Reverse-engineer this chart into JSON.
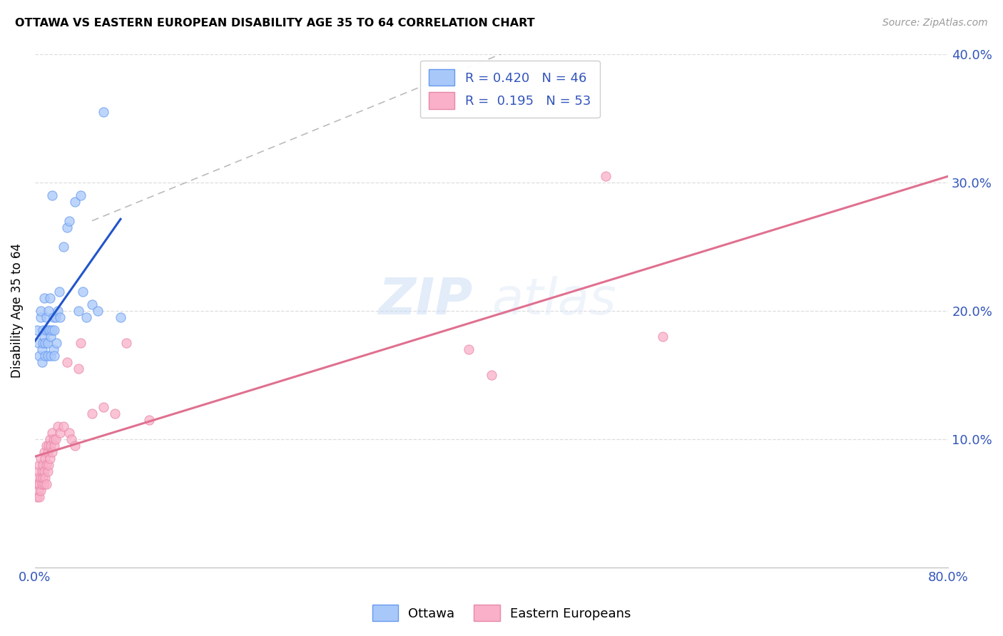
{
  "title": "OTTAWA VS EASTERN EUROPEAN DISABILITY AGE 35 TO 64 CORRELATION CHART",
  "source": "Source: ZipAtlas.com",
  "ylabel": "Disability Age 35 to 64",
  "xlim": [
    0.0,
    0.8
  ],
  "ylim": [
    0.0,
    0.4
  ],
  "xticks": [
    0.0,
    0.1,
    0.2,
    0.3,
    0.4,
    0.5,
    0.6,
    0.7,
    0.8
  ],
  "yticks": [
    0.0,
    0.1,
    0.2,
    0.3,
    0.4
  ],
  "legend1_text": "R = 0.420   N = 46",
  "legend2_text": "R =  0.195   N = 53",
  "ottawa_fill": "#a8c8fa",
  "ottawa_edge": "#6699ee",
  "eastern_fill": "#f9b0c8",
  "eastern_edge": "#e888a8",
  "ottawa_line_color": "#2255cc",
  "eastern_line_color": "#e07090",
  "watermark_zip": "ZIP",
  "watermark_atlas": "atlas",
  "ottawa_points_x": [
    0.002,
    0.003,
    0.004,
    0.005,
    0.005,
    0.006,
    0.006,
    0.007,
    0.007,
    0.008,
    0.008,
    0.009,
    0.009,
    0.01,
    0.01,
    0.011,
    0.011,
    0.012,
    0.012,
    0.013,
    0.013,
    0.014,
    0.014,
    0.015,
    0.015,
    0.016,
    0.016,
    0.017,
    0.017,
    0.018,
    0.019,
    0.02,
    0.021,
    0.022,
    0.025,
    0.028,
    0.03,
    0.035,
    0.038,
    0.04,
    0.042,
    0.045,
    0.05,
    0.055,
    0.06,
    0.075
  ],
  "ottawa_points_y": [
    0.185,
    0.175,
    0.165,
    0.195,
    0.2,
    0.17,
    0.16,
    0.185,
    0.175,
    0.21,
    0.18,
    0.175,
    0.165,
    0.195,
    0.185,
    0.175,
    0.165,
    0.2,
    0.185,
    0.21,
    0.185,
    0.18,
    0.165,
    0.29,
    0.185,
    0.195,
    0.17,
    0.185,
    0.165,
    0.195,
    0.175,
    0.2,
    0.215,
    0.195,
    0.25,
    0.265,
    0.27,
    0.285,
    0.2,
    0.29,
    0.215,
    0.195,
    0.205,
    0.2,
    0.355,
    0.195
  ],
  "eastern_points_x": [
    0.001,
    0.002,
    0.002,
    0.003,
    0.003,
    0.004,
    0.004,
    0.004,
    0.005,
    0.005,
    0.005,
    0.006,
    0.006,
    0.007,
    0.007,
    0.008,
    0.008,
    0.008,
    0.009,
    0.009,
    0.01,
    0.01,
    0.01,
    0.011,
    0.011,
    0.012,
    0.012,
    0.013,
    0.013,
    0.014,
    0.015,
    0.015,
    0.016,
    0.017,
    0.018,
    0.02,
    0.022,
    0.025,
    0.028,
    0.03,
    0.032,
    0.035,
    0.038,
    0.04,
    0.05,
    0.06,
    0.07,
    0.08,
    0.1,
    0.38,
    0.4,
    0.5,
    0.55
  ],
  "eastern_points_y": [
    0.07,
    0.065,
    0.055,
    0.075,
    0.06,
    0.08,
    0.065,
    0.055,
    0.085,
    0.07,
    0.06,
    0.075,
    0.065,
    0.08,
    0.07,
    0.09,
    0.075,
    0.065,
    0.085,
    0.07,
    0.095,
    0.08,
    0.065,
    0.09,
    0.075,
    0.095,
    0.08,
    0.1,
    0.085,
    0.095,
    0.105,
    0.09,
    0.1,
    0.095,
    0.1,
    0.11,
    0.105,
    0.11,
    0.16,
    0.105,
    0.1,
    0.095,
    0.155,
    0.175,
    0.12,
    0.125,
    0.12,
    0.175,
    0.115,
    0.17,
    0.15,
    0.305,
    0.18
  ]
}
